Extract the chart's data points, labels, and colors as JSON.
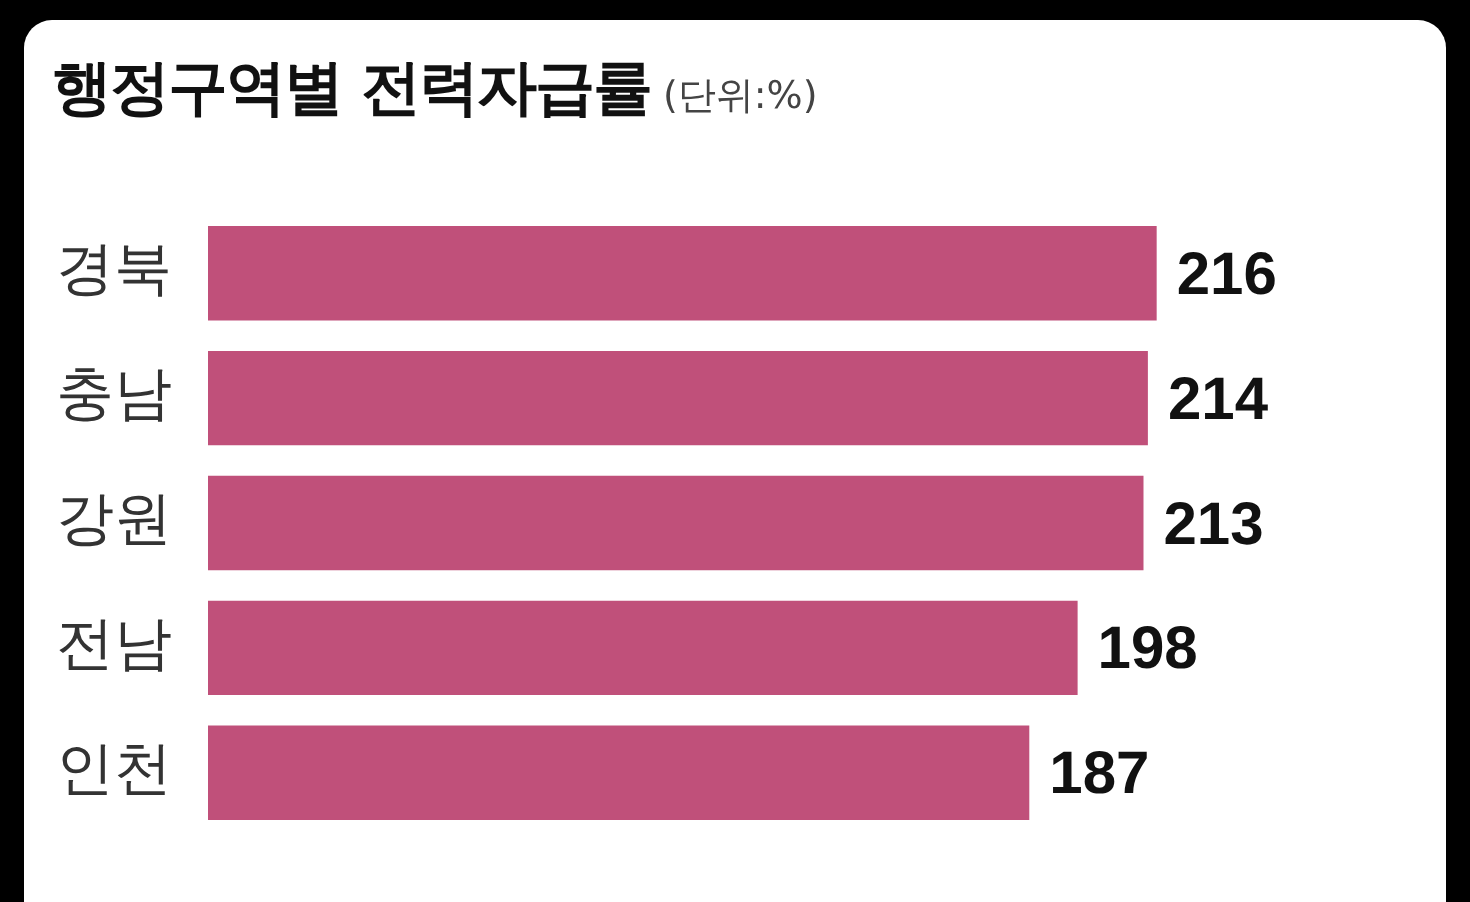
{
  "chart_data": {
    "type": "bar",
    "orientation": "horizontal",
    "title": "행정구역별 전력자급률",
    "subtitle": "(단위:%)",
    "categories": [
      "경북",
      "충남",
      "강원",
      "전남",
      "인천"
    ],
    "values": [
      216,
      214,
      213,
      198,
      187
    ],
    "color": "#c0507a",
    "data_labels": true,
    "legend": false
  }
}
